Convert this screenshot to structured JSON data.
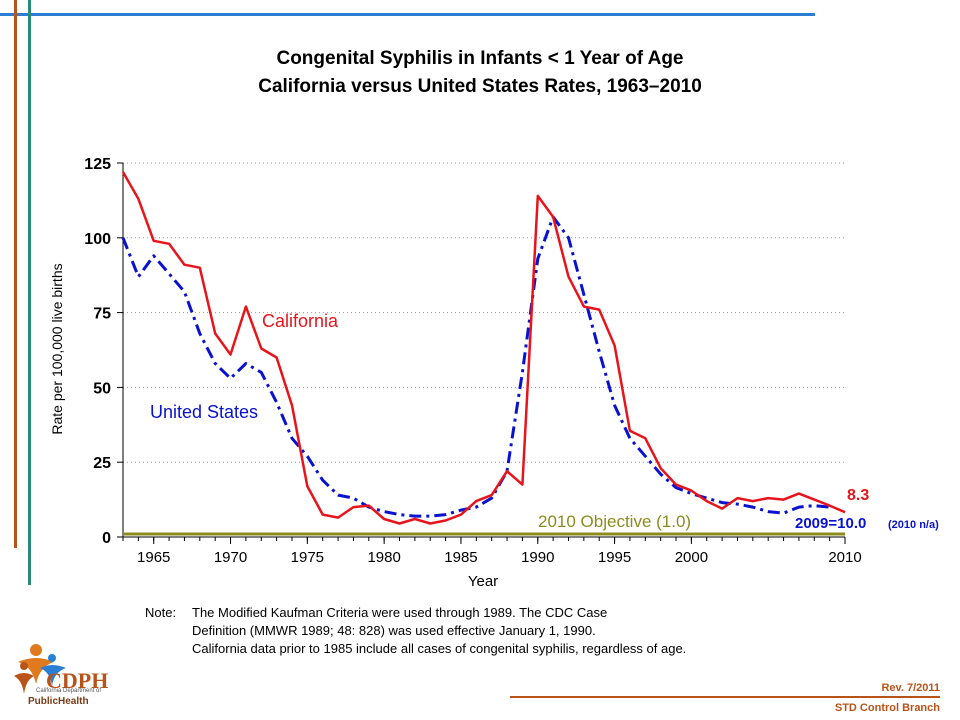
{
  "title_line1": "Congenital Syphilis in Infants < 1 Year of Age",
  "title_line2": "California versus United States Rates, 1963–2010",
  "note": {
    "label": "Note:",
    "lines": [
      "The Modified Kaufman Criteria were used through 1989.  The CDC Case",
      "Definition (MMWR 1989; 48: 828) was used effective January 1, 1990.",
      "California data prior to 1985 include all cases of congenital syphilis, regardless of age."
    ]
  },
  "footer": {
    "rev": "Rev. 7/2011",
    "branch": "STD Control Branch"
  },
  "logo": {
    "name": "CDPH",
    "sub": "California Department of",
    "org": "PublicHealth"
  },
  "colors": {
    "california": "#e8141c",
    "united_states": "#0a12d0",
    "objective": "#8c8c1e",
    "accent_blue": "#2a7fd4",
    "accent_brown": "#b8541a",
    "accent_teal": "#2a8a7a"
  },
  "chart_data": {
    "type": "line",
    "title": "Congenital Syphilis in Infants < 1 Year of Age — California versus United States Rates, 1963–2010",
    "xlabel": "Year",
    "ylabel": "Rate per 100,000 live births",
    "xlim": [
      1963,
      2010
    ],
    "ylim": [
      0,
      125
    ],
    "xticks": [
      1965,
      1970,
      1975,
      1980,
      1985,
      1990,
      1995,
      2000,
      2010
    ],
    "yticks": [
      0,
      25,
      50,
      75,
      100,
      125
    ],
    "grid": "horizontal dotted",
    "series": [
      {
        "name": "California",
        "style": "solid",
        "color": "#e8141c",
        "x": [
          1963,
          1964,
          1965,
          1966,
          1967,
          1968,
          1969,
          1970,
          1971,
          1972,
          1973,
          1974,
          1975,
          1976,
          1977,
          1978,
          1979,
          1980,
          1981,
          1982,
          1983,
          1984,
          1985,
          1986,
          1987,
          1988,
          1989,
          1990,
          1991,
          1992,
          1993,
          1994,
          1995,
          1996,
          1997,
          1998,
          1999,
          2000,
          2001,
          2002,
          2003,
          2004,
          2005,
          2006,
          2007,
          2008,
          2009,
          2010
        ],
        "y": [
          122,
          113,
          99,
          98,
          91,
          90,
          68,
          61,
          77,
          63,
          60,
          44,
          17,
          7.5,
          6.5,
          10,
          10.5,
          6,
          4.5,
          6,
          4.5,
          5.5,
          7.5,
          12,
          14,
          22,
          17.5,
          114,
          107,
          87,
          77,
          76,
          64,
          35.5,
          33,
          23,
          17.5,
          15.5,
          12,
          9.5,
          13,
          12,
          13,
          12.5,
          14.5,
          12.5,
          10.5,
          8.3
        ]
      },
      {
        "name": "United States",
        "style": "dash-dot",
        "color": "#0a12d0",
        "x": [
          1963,
          1964,
          1965,
          1966,
          1967,
          1968,
          1969,
          1970,
          1971,
          1972,
          1973,
          1974,
          1975,
          1976,
          1977,
          1978,
          1979,
          1980,
          1981,
          1982,
          1983,
          1984,
          1985,
          1986,
          1987,
          1988,
          1989,
          1990,
          1991,
          1992,
          1993,
          1994,
          1995,
          1996,
          1997,
          1998,
          1999,
          2000,
          2001,
          2002,
          2003,
          2004,
          2005,
          2006,
          2007,
          2008,
          2009
        ],
        "y": [
          100,
          87,
          94,
          88,
          82,
          68,
          58,
          53,
          58,
          55,
          45,
          33,
          27,
          19,
          14,
          13,
          10,
          8.5,
          7.5,
          7,
          7,
          7.5,
          9,
          10,
          13,
          22,
          55,
          93,
          107,
          100,
          81,
          62,
          44,
          33,
          27,
          21,
          16.5,
          14.5,
          13,
          11.5,
          11,
          10,
          8.5,
          8,
          10,
          10.5,
          10
        ]
      },
      {
        "name": "2010 Objective (1.0)",
        "style": "solid",
        "color": "#8c8c1e",
        "x": [
          1963,
          2010
        ],
        "y": [
          1.0,
          1.0
        ]
      }
    ],
    "annotations": {
      "california_label": "California",
      "us_label": "United States",
      "objective_label": "2010 Objective (1.0)",
      "ca_2010_value": "8.3",
      "us_2009_value": "2009=10.0",
      "us_2010_note": "(2010 n/a)"
    }
  }
}
